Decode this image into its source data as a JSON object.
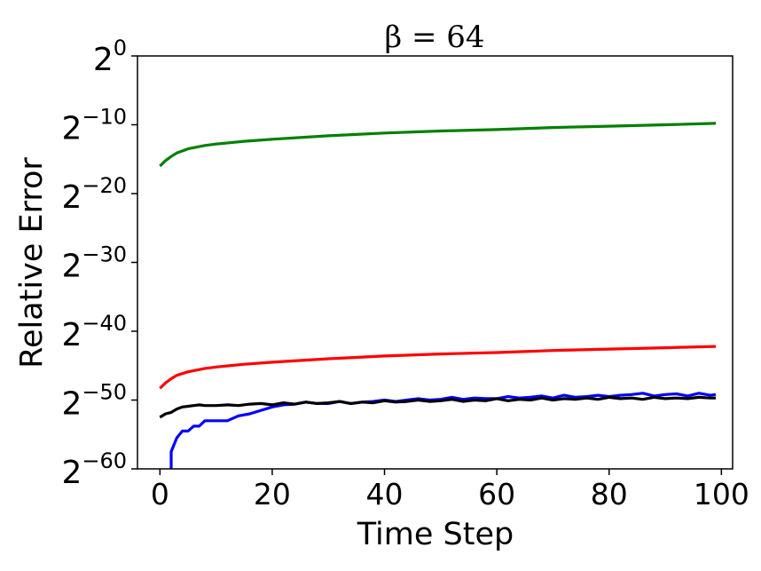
{
  "chart_data": {
    "type": "line",
    "title": "β = 64",
    "xlabel": "Time Step",
    "ylabel": "Relative Error",
    "xlim": [
      -4,
      102
    ],
    "ylim": [
      -60,
      0
    ],
    "yscale": "log2",
    "grid": false,
    "legend": "none",
    "xticks": [
      0,
      20,
      40,
      60,
      80,
      100
    ],
    "xtick_labels": [
      "0",
      "20",
      "40",
      "60",
      "80",
      "100"
    ],
    "yticks": [
      0,
      -10,
      -20,
      -30,
      -40,
      -50,
      -60
    ],
    "ytick_labels": [
      {
        "base": "2",
        "exp": "0"
      },
      {
        "base": "2",
        "exp": "−10"
      },
      {
        "base": "2",
        "exp": "−20"
      },
      {
        "base": "2",
        "exp": "−30"
      },
      {
        "base": "2",
        "exp": "−40"
      },
      {
        "base": "2",
        "exp": "−50"
      },
      {
        "base": "2",
        "exp": "−60"
      }
    ],
    "series": [
      {
        "color": "#008000",
        "x": [
          0,
          1,
          2,
          3,
          5,
          8,
          10,
          15,
          20,
          30,
          40,
          50,
          60,
          70,
          80,
          90,
          99
        ],
        "y": [
          -16.0,
          -15.2,
          -14.6,
          -14.1,
          -13.5,
          -13.0,
          -12.8,
          -12.4,
          -12.1,
          -11.6,
          -11.2,
          -10.9,
          -10.7,
          -10.4,
          -10.2,
          -10.0,
          -9.8
        ]
      },
      {
        "color": "#ff0000",
        "x": [
          0,
          1,
          2,
          3,
          5,
          8,
          10,
          15,
          20,
          30,
          40,
          50,
          60,
          70,
          80,
          90,
          99
        ],
        "y": [
          -48.3,
          -47.5,
          -46.9,
          -46.4,
          -45.9,
          -45.4,
          -45.2,
          -44.8,
          -44.5,
          -44.0,
          -43.6,
          -43.3,
          -43.1,
          -42.8,
          -42.6,
          -42.4,
          -42.2
        ]
      },
      {
        "color": "#0000ff",
        "x": [
          2,
          2,
          3,
          4,
          5,
          6,
          7,
          8,
          9,
          10,
          12,
          14,
          16,
          18,
          20,
          22,
          24,
          26,
          28,
          30,
          32,
          34,
          36,
          38,
          40,
          42,
          44,
          46,
          48,
          50,
          52,
          54,
          56,
          58,
          60,
          62,
          64,
          66,
          68,
          70,
          72,
          74,
          76,
          78,
          80,
          82,
          84,
          86,
          88,
          90,
          92,
          94,
          96,
          98,
          99
        ],
        "y": [
          -60,
          -57.5,
          -55.5,
          -54.5,
          -54.5,
          -53.8,
          -53.8,
          -53.0,
          -53.0,
          -53.0,
          -53.0,
          -52.3,
          -52.0,
          -51.5,
          -51.0,
          -50.7,
          -50.6,
          -50.3,
          -50.5,
          -50.5,
          -50.2,
          -50.5,
          -50.3,
          -50.2,
          -50.0,
          -50.2,
          -50.0,
          -49.8,
          -50.0,
          -49.9,
          -49.6,
          -49.9,
          -49.7,
          -49.8,
          -49.8,
          -49.5,
          -49.7,
          -49.6,
          -49.4,
          -49.7,
          -49.3,
          -49.6,
          -49.5,
          -49.3,
          -49.5,
          -49.3,
          -49.2,
          -49.0,
          -49.4,
          -49.2,
          -49.1,
          -49.4,
          -49.0,
          -49.3,
          -49.2
        ]
      },
      {
        "color": "#000000",
        "x": [
          0,
          1,
          2,
          3,
          4,
          5,
          6,
          7,
          8,
          10,
          12,
          14,
          16,
          18,
          20,
          22,
          24,
          26,
          28,
          30,
          32,
          34,
          36,
          38,
          40,
          42,
          44,
          46,
          48,
          50,
          52,
          54,
          56,
          58,
          60,
          62,
          64,
          66,
          68,
          70,
          72,
          74,
          76,
          78,
          80,
          82,
          84,
          86,
          88,
          90,
          92,
          94,
          96,
          98,
          99
        ],
        "y": [
          -52.5,
          -52.0,
          -51.8,
          -51.3,
          -51.0,
          -50.9,
          -50.8,
          -50.7,
          -50.8,
          -50.8,
          -50.7,
          -50.8,
          -50.6,
          -50.5,
          -50.7,
          -50.4,
          -50.6,
          -50.3,
          -50.5,
          -50.4,
          -50.2,
          -50.5,
          -50.3,
          -50.4,
          -50.1,
          -50.3,
          -50.2,
          -50.0,
          -50.2,
          -50.1,
          -49.9,
          -50.2,
          -50.0,
          -50.1,
          -49.8,
          -50.1,
          -49.9,
          -50.0,
          -49.7,
          -50.0,
          -49.8,
          -49.9,
          -49.7,
          -49.9,
          -49.6,
          -49.8,
          -49.7,
          -49.9,
          -49.6,
          -49.8,
          -49.7,
          -49.8,
          -49.6,
          -49.7,
          -49.7
        ]
      }
    ]
  }
}
